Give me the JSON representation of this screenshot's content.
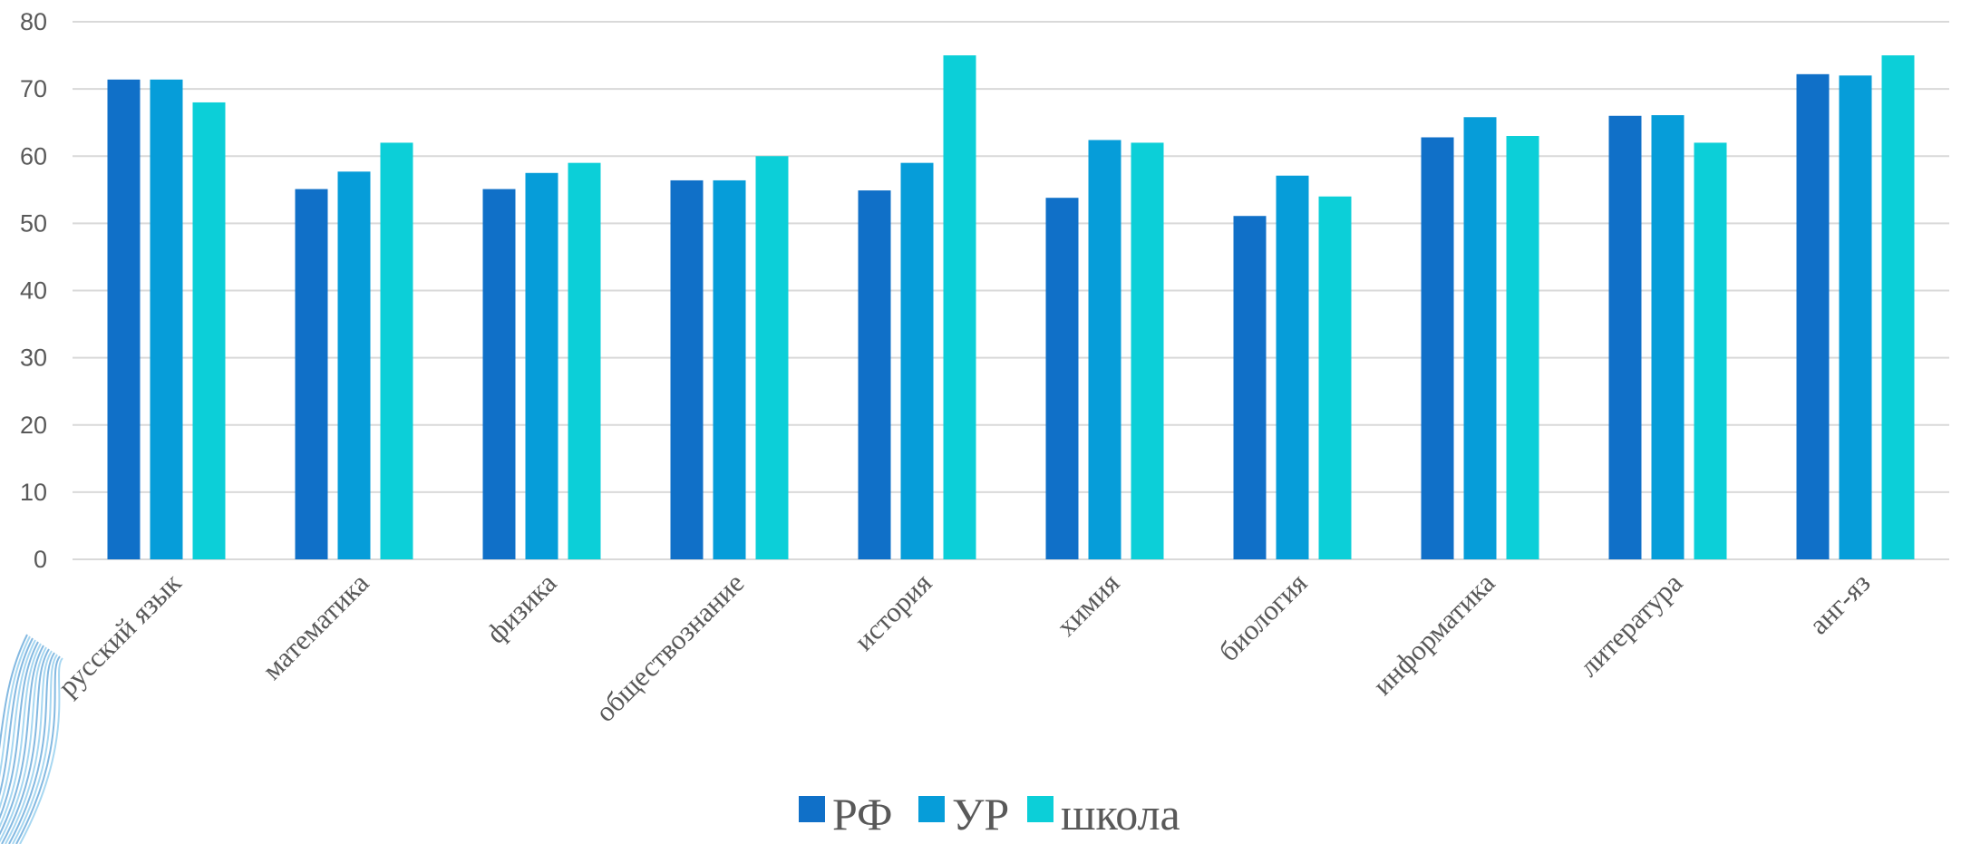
{
  "chart_data": {
    "type": "bar",
    "title": "",
    "xlabel": "",
    "ylabel": "",
    "ylim": [
      0,
      80
    ],
    "yticks": [
      0,
      10,
      20,
      30,
      40,
      50,
      60,
      70,
      80
    ],
    "grid": true,
    "legend_position": "bottom",
    "categories": [
      "русский язык",
      "математика",
      "физика",
      "обществознание",
      "история",
      "химия",
      "биология",
      "информатика",
      "литература",
      "анг-яз"
    ],
    "series": [
      {
        "name": "РФ",
        "color": "#1070c8",
        "values": [
          71.4,
          55.1,
          55.1,
          56.4,
          54.9,
          53.8,
          51.1,
          62.8,
          66.0,
          72.2
        ]
      },
      {
        "name": "УР",
        "color": "#069dd9",
        "values": [
          71.4,
          57.7,
          57.5,
          56.4,
          59.0,
          62.4,
          57.1,
          65.8,
          66.1,
          72.0
        ]
      },
      {
        "name": "школа",
        "color": "#0ccfd8",
        "values": [
          68.0,
          62.0,
          59.0,
          60.0,
          75.0,
          62.0,
          54.0,
          63.0,
          62.0,
          75.0
        ]
      }
    ]
  }
}
